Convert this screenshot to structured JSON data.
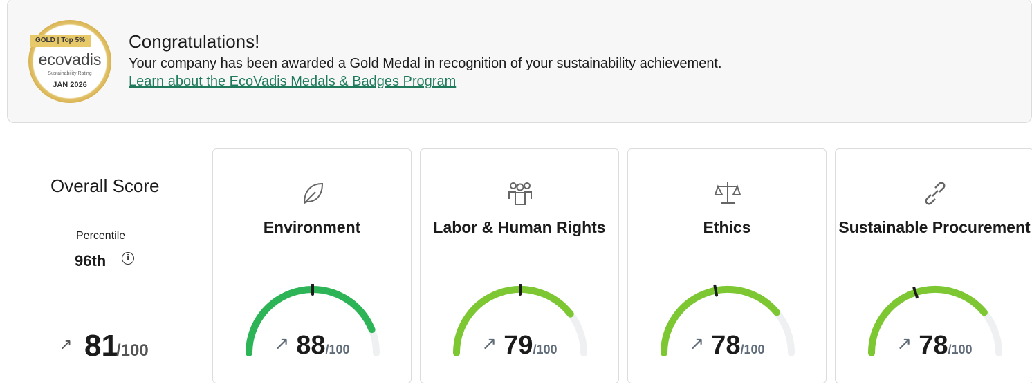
{
  "banner": {
    "medal": {
      "level": "GOLD | Top 5%",
      "brand": "ecovadis",
      "subtitle": "Sustainability Rating",
      "date": "JAN 2026",
      "color": "#c99a2e"
    },
    "title": "Congratulations!",
    "message": "Your company has been awarded a Gold Medal in recognition of your sustainability achievement.",
    "link": "Learn about the EcoVadis Medals & Badges Program"
  },
  "overall": {
    "title": "Overall Score",
    "percentile_label": "Percentile",
    "percentile": "96th",
    "score": "81",
    "max": "/100",
    "trend": "up"
  },
  "themes": [
    {
      "name": "Environment",
      "icon": "leaf-icon",
      "score": "88",
      "max": "/100",
      "fill": 88,
      "marker": 50,
      "color": "#2db457"
    },
    {
      "name": "Labor & Human Rights",
      "icon": "people-icon",
      "score": "79",
      "max": "/100",
      "fill": 79,
      "marker": 50,
      "color": "#7dc832"
    },
    {
      "name": "Ethics",
      "icon": "scales-icon",
      "score": "78",
      "max": "/100",
      "fill": 78,
      "marker": 44,
      "color": "#7dc832"
    },
    {
      "name": "Sustainable Procurement",
      "icon": "link-icon",
      "score": "78",
      "max": "/100",
      "fill": 78,
      "marker": 40,
      "color": "#7dc832"
    }
  ]
}
